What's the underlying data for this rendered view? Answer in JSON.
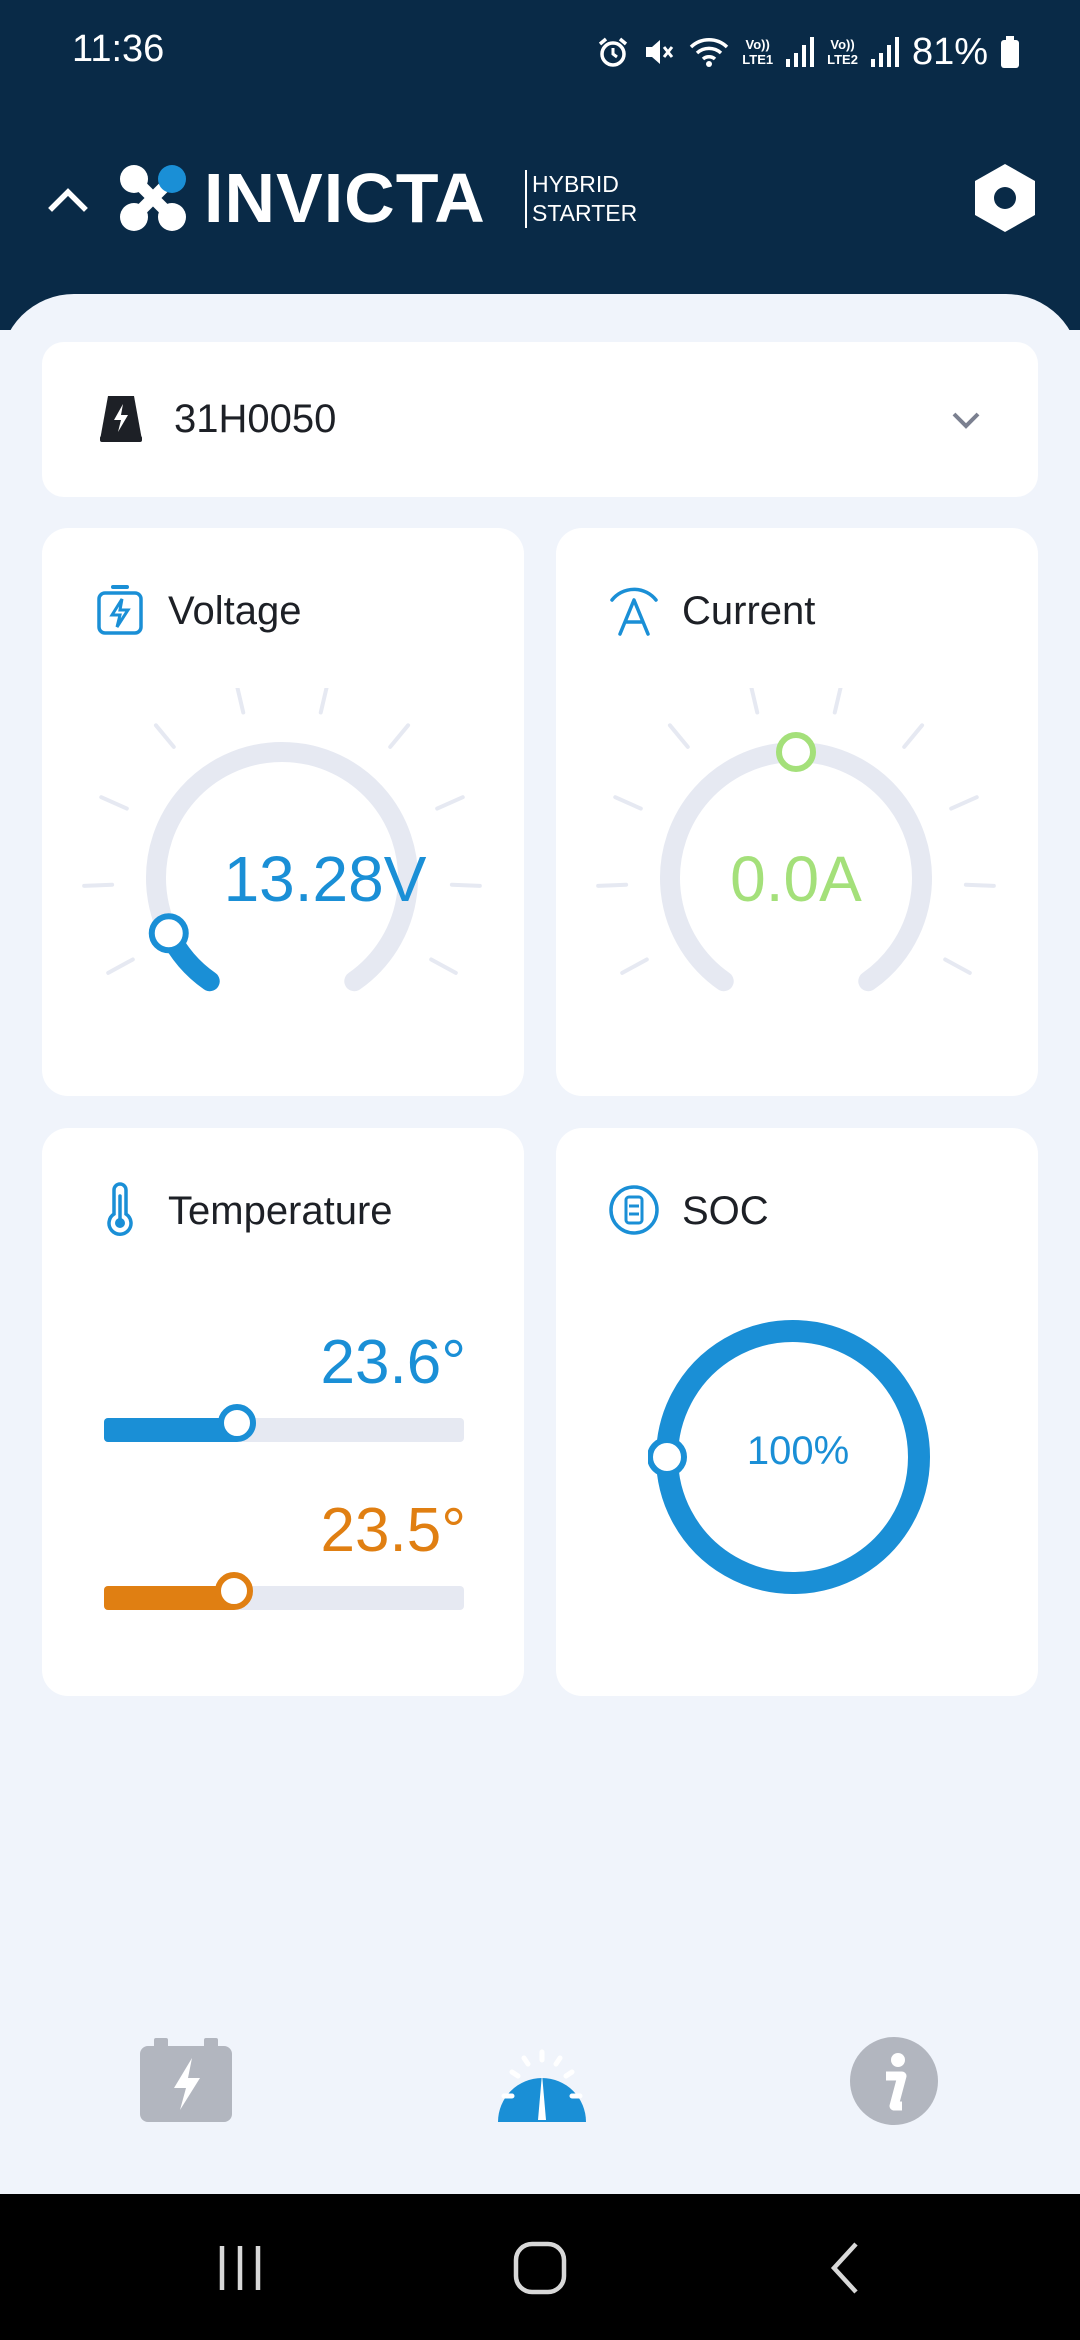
{
  "status_bar": {
    "time": "11:36",
    "battery": "81%",
    "lte1": [
      "Vo))",
      "LTE1"
    ],
    "lte2": [
      "Vo))",
      "LTE2"
    ],
    "icons": [
      "alarm-icon",
      "mute-icon",
      "wifi-icon",
      "signal-icon",
      "battery-icon"
    ]
  },
  "header": {
    "brand": "INVICTA",
    "sub_line1": "HYBRID",
    "sub_line2": "STARTER",
    "icons": [
      "chevron-up-icon",
      "invicta-logo",
      "settings-icon"
    ]
  },
  "device_selector": {
    "name": "31H0050",
    "icon": "battery-charge-icon"
  },
  "cards": {
    "voltage": {
      "title": "Voltage",
      "value": "13.28V",
      "level": 0.1,
      "color": "#1a8fd6"
    },
    "current": {
      "title": "Current",
      "value": "0.0A",
      "level": 0.5,
      "color": "#a4e07a"
    },
    "temperature": {
      "title": "Temperature",
      "sensor1": {
        "value": "23.6°",
        "level": 0.37,
        "color": "#1a8fd6"
      },
      "sensor2": {
        "value": "23.5°",
        "level": 0.36,
        "color": "#e07f12"
      }
    },
    "soc": {
      "title": "SOC",
      "value": "100%",
      "level": 1.0,
      "color": "#1a8fd6"
    }
  },
  "tabs": [
    {
      "icon": "battery-tab-icon",
      "active": false
    },
    {
      "icon": "gauge-tab-icon",
      "active": true
    },
    {
      "icon": "info-tab-icon",
      "active": false
    }
  ],
  "colors": {
    "header_bg": "#092a47",
    "accent": "#1a8fd6",
    "inactive_tab": "#b2b6bf"
  }
}
